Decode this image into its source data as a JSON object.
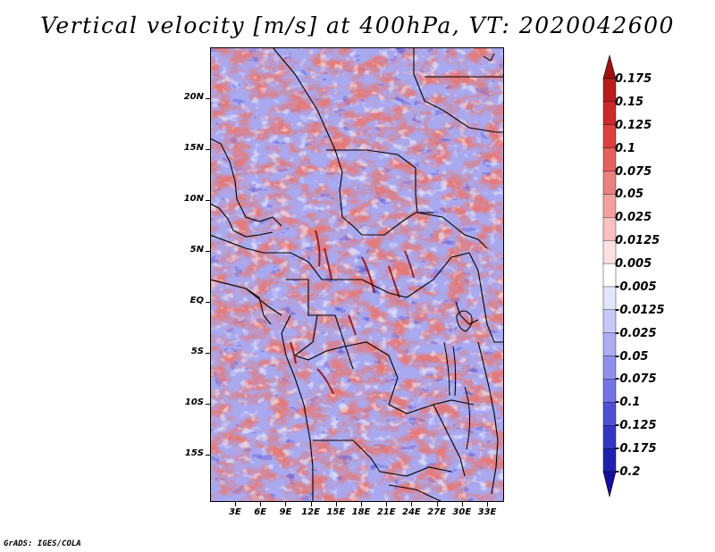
{
  "title": "Vertical velocity [m/s] at 400hPa, VT: 2020042600",
  "credit": "GrADS: IGES/COLA",
  "lat_labels": [
    "20N",
    "15N",
    "10N",
    "5N",
    "EQ",
    "5S",
    "10S",
    "15S"
  ],
  "lat_values": [
    20,
    15,
    10,
    5,
    0,
    -5,
    -10,
    -15
  ],
  "lon_labels": [
    "3E",
    "6E",
    "9E",
    "12E",
    "15E",
    "18E",
    "21E",
    "24E",
    "27E",
    "30E",
    "33E"
  ],
  "lon_values": [
    3,
    6,
    9,
    12,
    15,
    18,
    21,
    24,
    27,
    30,
    33
  ],
  "colorbar": {
    "labels": [
      "0.175",
      "0.15",
      "0.125",
      "0.1",
      "0.075",
      "0.05",
      "0.025",
      "0.0125",
      "0.005",
      "-0.005",
      "-0.0125",
      "-0.025",
      "-0.05",
      "-0.075",
      "-0.1",
      "-0.125",
      "-0.175",
      "-0.2"
    ],
    "colors": [
      "#a01010",
      "#b81c1c",
      "#cc2a2a",
      "#dd4040",
      "#e66060",
      "#ee8080",
      "#f4a0a0",
      "#f9c0c0",
      "#fde0e0",
      "#ffffff",
      "#e4e4fc",
      "#c8c8f8",
      "#acacf2",
      "#9090ec",
      "#7474e4",
      "#5050d6",
      "#3434c4",
      "#2020b0",
      "#160e9e"
    ]
  }
}
